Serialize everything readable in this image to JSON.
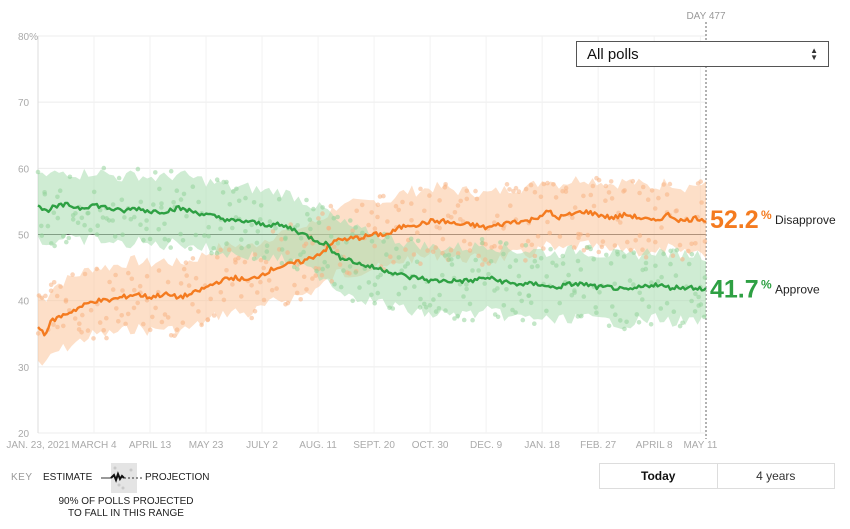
{
  "chart_data": {
    "type": "line",
    "y_ticks": [
      "80%",
      "70",
      "60",
      "50",
      "40",
      "30",
      "20"
    ],
    "ylim": [
      20,
      80
    ],
    "x_ticks": [
      "JAN. 23, 2021",
      "MARCH 4",
      "APRIL 13",
      "MAY 23",
      "JULY 2",
      "AUG. 11",
      "SEPT. 20",
      "OCT. 30",
      "DEC. 9",
      "JAN. 18",
      "FEB. 27",
      "APRIL 8",
      "MAY 11"
    ],
    "x_tick_days": [
      0,
      40,
      80,
      120,
      160,
      200,
      240,
      280,
      320,
      360,
      400,
      440,
      473
    ],
    "xlim_days": [
      0,
      477
    ],
    "day_marker": {
      "label": "DAY 477",
      "day": 477
    },
    "reference_line": 50,
    "series": [
      {
        "name": "Disapprove",
        "color": "#f47b20",
        "final_value": "52.2",
        "x_days": [
          0,
          5,
          10,
          20,
          30,
          40,
          50,
          60,
          70,
          80,
          90,
          100,
          110,
          120,
          130,
          140,
          150,
          160,
          170,
          180,
          190,
          200,
          207,
          212,
          216,
          220,
          224,
          230,
          240,
          250,
          258,
          265,
          272,
          280,
          290,
          300,
          310,
          320,
          330,
          340,
          350,
          360,
          365,
          370,
          380,
          390,
          400,
          410,
          420,
          430,
          440,
          450,
          460,
          470,
          477
        ],
        "values": [
          36,
          35,
          37,
          38,
          39,
          40,
          40,
          40.5,
          41,
          40.5,
          41,
          40.5,
          41,
          42,
          43,
          43.5,
          43,
          44,
          45,
          45.5,
          46,
          47,
          48,
          49,
          49.5,
          49,
          49.5,
          49.5,
          50,
          50,
          51,
          51.5,
          51.5,
          52,
          52,
          51.5,
          51.5,
          51,
          51.5,
          52,
          52,
          53,
          53.5,
          52.5,
          53,
          53.5,
          53,
          52.5,
          53,
          52.5,
          52,
          53,
          52,
          52.5,
          52.2
        ]
      },
      {
        "name": "Approve",
        "color": "#2ea043",
        "final_value": "41.7",
        "x_days": [
          0,
          5,
          10,
          20,
          30,
          40,
          50,
          60,
          70,
          80,
          90,
          100,
          110,
          120,
          130,
          140,
          150,
          160,
          170,
          180,
          190,
          200,
          207,
          212,
          216,
          220,
          224,
          230,
          240,
          250,
          258,
          265,
          272,
          280,
          290,
          300,
          310,
          320,
          330,
          340,
          350,
          360,
          365,
          370,
          380,
          390,
          400,
          410,
          420,
          430,
          440,
          450,
          460,
          470,
          477
        ],
        "values": [
          54.5,
          53.5,
          54,
          54.5,
          54,
          54.5,
          54,
          53.5,
          54,
          53.5,
          53.5,
          54,
          53.5,
          53,
          52.5,
          52,
          52,
          51.5,
          51.5,
          51,
          50,
          49,
          48.5,
          47,
          46.5,
          46.5,
          46,
          45.5,
          45,
          44.5,
          44,
          43.5,
          43.5,
          43,
          43,
          43,
          43,
          43.5,
          43,
          42.5,
          42.5,
          42.5,
          42,
          42,
          42.5,
          42.5,
          42,
          42,
          41.5,
          42,
          42.5,
          42,
          42,
          42,
          41.7
        ]
      }
    ]
  },
  "poll_filter": {
    "selected": "All polls"
  },
  "key": {
    "title": "KEY",
    "estimate_label": "ESTIMATE",
    "projection_label": "PROJECTION",
    "note": "90% OF POLLS PROJECTED TO FALL IN THIS RANGE"
  },
  "range_toggle": {
    "options": [
      "Today",
      "4 years"
    ],
    "active": "Today"
  }
}
